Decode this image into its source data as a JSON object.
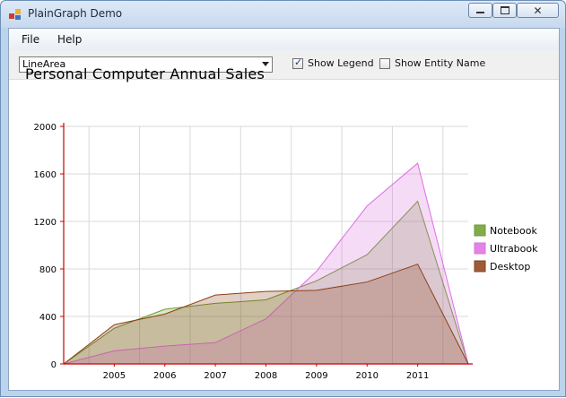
{
  "window": {
    "title": "PlainGraph Demo"
  },
  "menu": {
    "items": [
      "File",
      "Help"
    ]
  },
  "toolbar": {
    "chart_type_value": "LineArea",
    "show_legend_label": "Show Legend",
    "show_legend_checked": true,
    "show_entity_label": "Show Entity Name",
    "show_entity_checked": false
  },
  "chart_data": {
    "type": "area",
    "title": "Personal Computer Annual Sales",
    "categories": [
      "",
      "2005",
      "2006",
      "2007",
      "2008",
      "2009",
      "2010",
      "2011",
      ""
    ],
    "y_ticks": [
      "0",
      "400",
      "800",
      "1200",
      "1600",
      "2000"
    ],
    "ylim": [
      0,
      2000
    ],
    "grid": true,
    "legend_position": "right",
    "series": [
      {
        "name": "Notebook",
        "color": "#6e9b2f",
        "values": [
          0,
          300,
          460,
          510,
          540,
          700,
          920,
          1370,
          0
        ]
      },
      {
        "name": "Ultrabook",
        "color": "#dd6fe0",
        "values": [
          0,
          110,
          150,
          180,
          380,
          780,
          1330,
          1690,
          0
        ]
      },
      {
        "name": "Desktop",
        "color": "#8c3f16",
        "values": [
          0,
          330,
          420,
          580,
          610,
          620,
          690,
          840,
          0
        ]
      }
    ]
  }
}
